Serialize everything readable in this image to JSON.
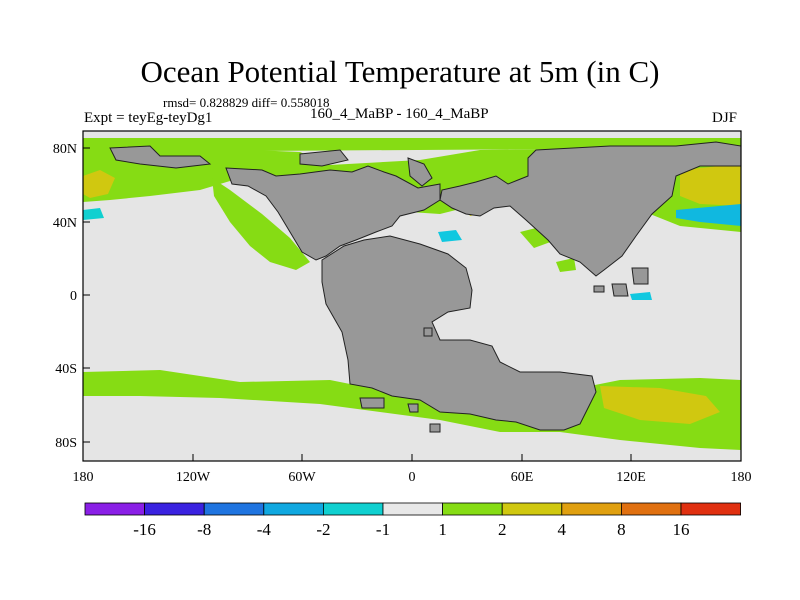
{
  "title": "Ocean Potential Temperature at 5m (in C)",
  "stats": "rmsd= 0.828829 diff= 0.558018",
  "experiment": "Expt = teyEg-teyDg1",
  "comparison": "160_4_MaBP - 160_4_MaBP",
  "season": "DJF",
  "x_ticks": [
    "180",
    "120W",
    "60W",
    "0",
    "60E",
    "120E",
    "180"
  ],
  "y_ticks": [
    "80N",
    "40N",
    "0",
    "40S",
    "80S"
  ],
  "colorbar": {
    "labels": [
      "-16",
      "-8",
      "-4",
      "-2",
      "-1",
      "1",
      "2",
      "4",
      "8",
      "16"
    ],
    "colors": [
      "#8a1fe6",
      "#3a22e0",
      "#1f74e0",
      "#10a8e0",
      "#10d0d0",
      "#e8e8e8",
      "#86dc14",
      "#d0c810",
      "#e0a010",
      "#e07010",
      "#e03010"
    ]
  },
  "map_colors": {
    "ocean": "#e5e5e5",
    "land": "#989898",
    "warm_low": "#86dc14",
    "warm_mid": "#d0c810",
    "cool": "#10c8e0"
  }
}
